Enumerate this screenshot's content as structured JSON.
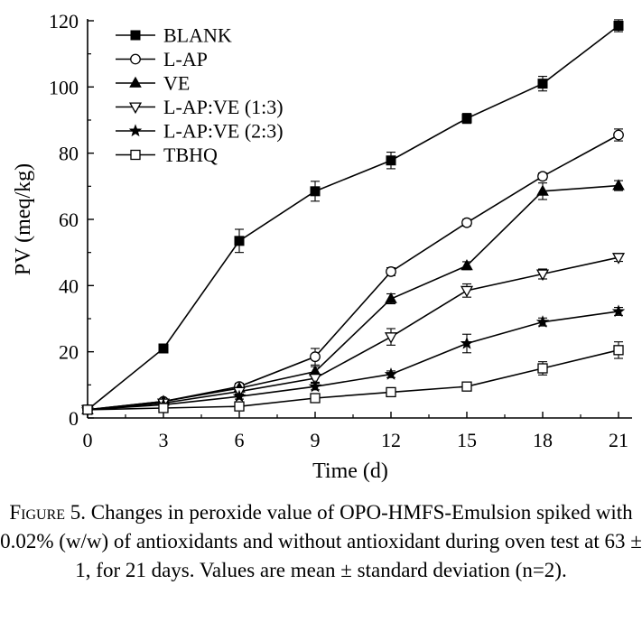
{
  "chart_data": {
    "type": "line",
    "xlabel": "Time (d)",
    "ylabel": "PV (meq/kg)",
    "x": [
      0,
      3,
      6,
      9,
      12,
      15,
      18,
      21
    ],
    "xlim": [
      0,
      22
    ],
    "ylim": [
      0,
      120
    ],
    "xticks": [
      0,
      3,
      6,
      9,
      12,
      15,
      18,
      21
    ],
    "yticks": [
      0,
      20,
      40,
      60,
      80,
      100,
      120
    ],
    "grid": false,
    "legend_position": "top-left",
    "error_bars": true,
    "series": [
      {
        "name": "BLANK",
        "marker": "filled-square",
        "values": [
          2.5,
          21,
          53.5,
          68.5,
          77.8,
          90.5,
          101,
          118.5
        ],
        "errors": [
          0,
          0.8,
          3.5,
          3,
          2.5,
          1.5,
          2.2,
          1.8
        ]
      },
      {
        "name": "L-AP",
        "marker": "open-circle",
        "values": [
          2.5,
          5,
          9.5,
          18.5,
          44.2,
          59,
          73,
          85.5
        ],
        "errors": [
          0,
          0.6,
          1,
          2.5,
          1.2,
          1,
          1,
          1.8
        ]
      },
      {
        "name": "VE",
        "marker": "filled-triangle",
        "values": [
          2.5,
          5,
          9,
          14,
          36,
          46,
          68.5,
          70.2
        ],
        "errors": [
          0,
          0.5,
          0.8,
          1.5,
          1.5,
          1.2,
          2.5,
          1.5
        ]
      },
      {
        "name": "L-AP:VE (1:3)",
        "marker": "open-triangle-down",
        "values": [
          2.5,
          4.5,
          8,
          12,
          24.5,
          38.5,
          43.5,
          48.5
        ],
        "errors": [
          0,
          0.5,
          0.8,
          1.2,
          2.5,
          2,
          1.5,
          1.2
        ]
      },
      {
        "name": "L-AP:VE (2:3)",
        "marker": "filled-star",
        "values": [
          2.5,
          4,
          6.5,
          9.5,
          13.2,
          22.5,
          29,
          32.2
        ],
        "errors": [
          0,
          0.5,
          0.8,
          1,
          1,
          2.8,
          1.2,
          1.2
        ]
      },
      {
        "name": "TBHQ",
        "marker": "open-square",
        "values": [
          2.5,
          3,
          3.5,
          6,
          7.8,
          9.5,
          15,
          20.5
        ],
        "errors": [
          0,
          0.4,
          0.5,
          0.8,
          0.8,
          0.8,
          2,
          2.5
        ]
      }
    ]
  },
  "caption": {
    "figure_label": "Figure 5.",
    "text": " Changes in peroxide value of OPO-HMFS-Emulsion spiked with 0.02% (w/w) of antioxidants and without antioxidant during oven test at 63 ± 1, for 21 days. Values are mean ± standard deviation (n=2)."
  }
}
